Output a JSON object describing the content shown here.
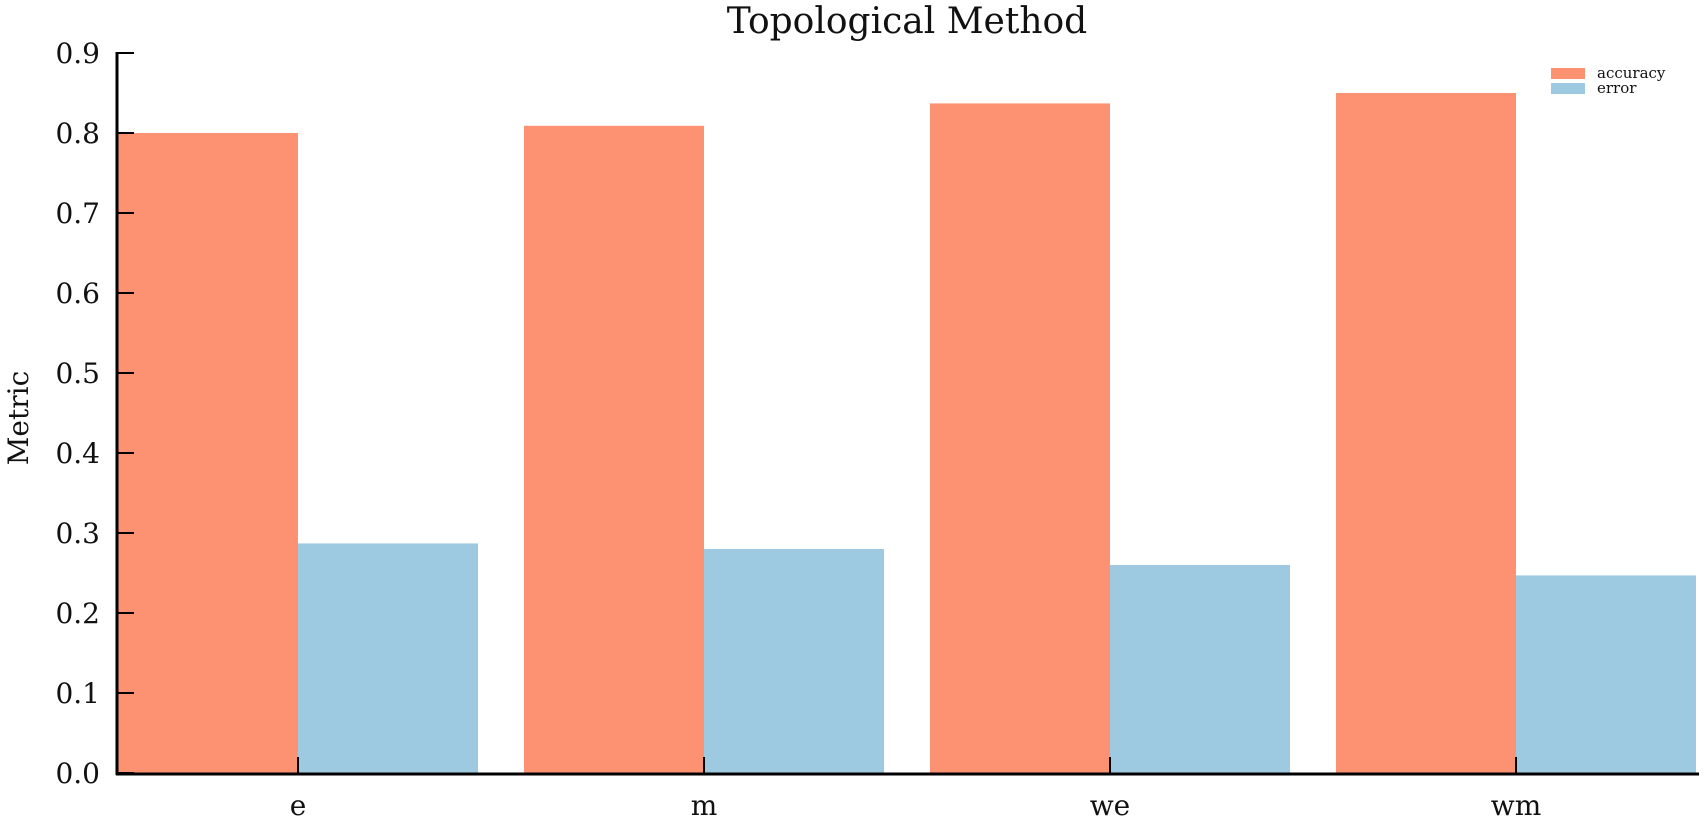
{
  "chart_data": {
    "type": "bar",
    "title": "Topological Method",
    "xlabel": "",
    "ylabel": "Metric",
    "categories": [
      "e",
      "m",
      "we",
      "wm"
    ],
    "series": [
      {
        "name": "accuracy",
        "color": "#fc9272",
        "values": [
          0.8,
          0.809,
          0.837,
          0.85
        ]
      },
      {
        "name": "error",
        "color": "#9ecae1",
        "values": [
          0.287,
          0.28,
          0.26,
          0.247
        ]
      }
    ],
    "ylim": [
      0.0,
      0.9
    ],
    "yticks": [
      "0.0",
      "0.1",
      "0.2",
      "0.3",
      "0.4",
      "0.5",
      "0.6",
      "0.7",
      "0.8",
      "0.9"
    ],
    "grid": false,
    "legend": "top-right"
  }
}
